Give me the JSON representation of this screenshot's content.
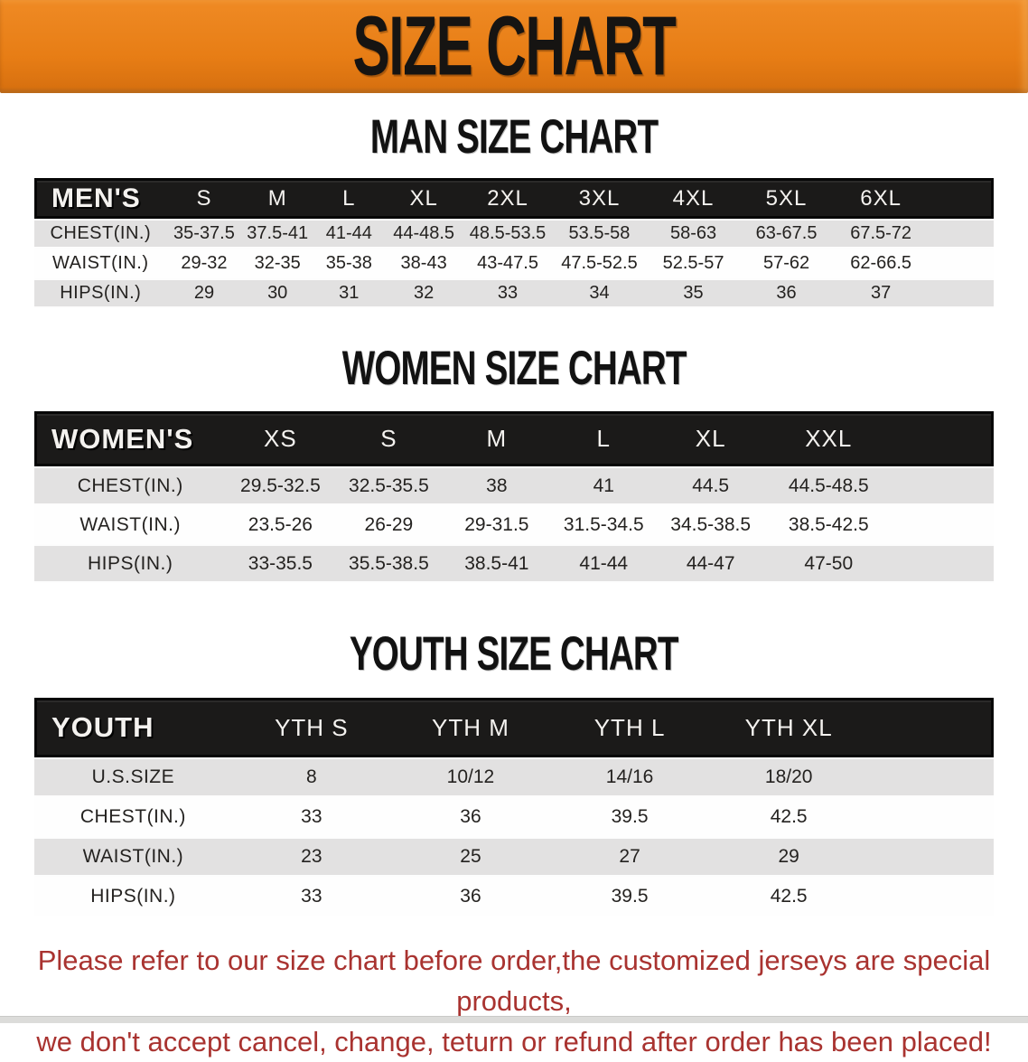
{
  "banner": {
    "title": "SIZE CHART",
    "bg_color": "#E77D15",
    "text_color": "#161412"
  },
  "sections": [
    {
      "id": "mens",
      "heading": "MAN SIZE CHART",
      "group_label": "MEN'S",
      "columns": [
        "S",
        "M",
        "L",
        "XL",
        "2XL",
        "3XL",
        "4XL",
        "5XL",
        "6XL"
      ],
      "rows": [
        {
          "label": "CHEST(IN.)",
          "values": [
            "35-37.5",
            "37.5-41",
            "41-44",
            "44-48.5",
            "48.5-53.5",
            "53.5-58",
            "58-63",
            "63-67.5",
            "67.5-72"
          ]
        },
        {
          "label": "WAIST(IN.)",
          "values": [
            "29-32",
            "32-35",
            "35-38",
            "38-43",
            "43-47.5",
            "47.5-52.5",
            "52.5-57",
            "57-62",
            "62-66.5"
          ]
        },
        {
          "label": "HIPS(IN.)",
          "values": [
            "29",
            "30",
            "31",
            "32",
            "33",
            "34",
            "35",
            "36",
            "37"
          ]
        }
      ]
    },
    {
      "id": "womens",
      "heading": "WOMEN SIZE CHART",
      "group_label": "WOMEN'S",
      "columns": [
        "XS",
        "S",
        "M",
        "L",
        "XL",
        "XXL"
      ],
      "rows": [
        {
          "label": "CHEST(IN.)",
          "values": [
            "29.5-32.5",
            "32.5-35.5",
            "38",
            "41",
            "44.5",
            "44.5-48.5"
          ]
        },
        {
          "label": "WAIST(IN.)",
          "values": [
            "23.5-26",
            "26-29",
            "29-31.5",
            "31.5-34.5",
            "34.5-38.5",
            "38.5-42.5"
          ]
        },
        {
          "label": "HIPS(IN.)",
          "values": [
            "33-35.5",
            "35.5-38.5",
            "38.5-41",
            "41-44",
            "44-47",
            "47-50"
          ]
        }
      ]
    },
    {
      "id": "youth",
      "heading": "YOUTH SIZE CHART",
      "group_label": "YOUTH",
      "columns": [
        "YTH S",
        "YTH M",
        "YTH L",
        "YTH XL"
      ],
      "rows": [
        {
          "label": "U.S.SIZE",
          "values": [
            "8",
            "10/12",
            "14/16",
            "18/20"
          ]
        },
        {
          "label": "CHEST(IN.)",
          "values": [
            "33",
            "36",
            "39.5",
            "42.5"
          ]
        },
        {
          "label": "WAIST(IN.)",
          "values": [
            "23",
            "25",
            "27",
            "29"
          ]
        },
        {
          "label": "HIPS(IN.)",
          "values": [
            "33",
            "36",
            "39.5",
            "42.5"
          ]
        }
      ]
    }
  ],
  "disclaimer": {
    "line1": "Please refer to our size chart before order,the customized jerseys are special products,",
    "line2": "we don't accept cancel, change, teturn or refund after order has been placed!",
    "color": "#A93330"
  },
  "colors": {
    "banner_orange": "#E77D15",
    "header_bar_black": "#1B1A19",
    "stripe_gray": "#E2E1E1",
    "disclaimer_red": "#A93330"
  }
}
